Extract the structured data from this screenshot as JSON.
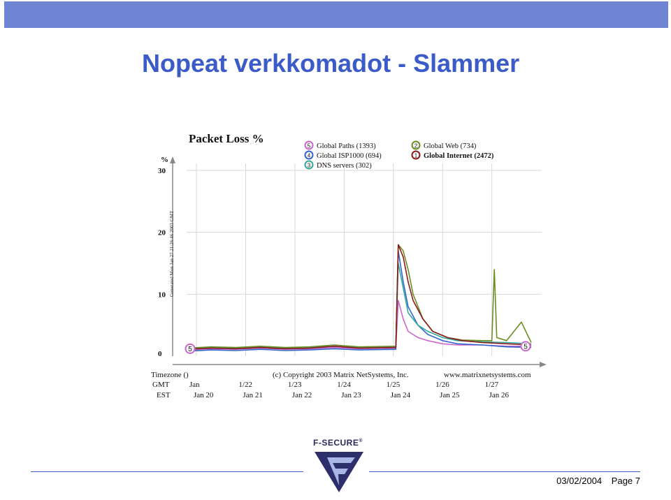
{
  "slide": {
    "title": "Nopeat verkkomadot - Slammer",
    "date": "03/02/2004",
    "page": "Page 7",
    "logo_text": "F-SECURE",
    "logo_mark": "®",
    "colors": {
      "topbar": "#6f85d4",
      "title": "#3a5bc8"
    }
  },
  "chart_data": {
    "type": "line",
    "title": "Packet Loss %",
    "ylabel": "%",
    "ylim": [
      0,
      30
    ],
    "yticks": [
      "0",
      "10",
      "20",
      "30"
    ],
    "grid": true,
    "side_note": "Generated Mon Jan 27 21:26:46 2003 GMT",
    "timezone_label": "Timezone ()",
    "copyright": "(c) Copyright 2003 Matrix NetSystems, Inc.",
    "website": "www.matrixnetsystems.com",
    "gmt_label": "GMT",
    "est_label": "EST",
    "gmt_ticks": [
      "Jan",
      "1/22",
      "1/23",
      "1/24",
      "1/25",
      "1/26",
      "1/27"
    ],
    "est_ticks": [
      "Jan 20",
      "Jan 21",
      "Jan 22",
      "Jan 23",
      "Jan 24",
      "Jan 25",
      "Jan 26"
    ],
    "x_range_days": [
      0,
      7
    ],
    "legend": [
      {
        "num": "5",
        "name": "Global Paths (1393)",
        "color": "#cc66cc"
      },
      {
        "num": "4",
        "name": "Global ISP1000 (694)",
        "color": "#3366cc"
      },
      {
        "num": "3",
        "name": "DNS servers (302)",
        "color": "#33aa99"
      },
      {
        "num": "2",
        "name": "Global Web (734)",
        "color": "#6b8e23"
      },
      {
        "num": "1",
        "name": "Global Internet (2472)",
        "color": "#8b1a1a"
      }
    ],
    "end_markers": [
      "5",
      "5"
    ],
    "series": [
      {
        "name": "Global Paths (1393)",
        "color": "#cc66cc",
        "x": [
          0,
          0.5,
          1,
          1.5,
          2,
          2.5,
          3,
          3.5,
          4.25,
          4.3,
          4.4,
          4.5,
          4.7,
          4.9,
          5.2,
          5.5,
          6,
          6.5,
          7
        ],
        "y": [
          1,
          1.2,
          1.1,
          1.3,
          1.1,
          1.2,
          1.4,
          1.2,
          1.3,
          9,
          6,
          4,
          3,
          2.5,
          2,
          1.8,
          1.8,
          1.6,
          1.6
        ]
      },
      {
        "name": "Global ISP1000 (694)",
        "color": "#3366cc",
        "x": [
          0,
          0.5,
          1,
          1.5,
          2,
          2.5,
          3,
          3.5,
          4.25,
          4.3,
          4.4,
          4.5,
          4.7,
          4.9,
          5.2,
          5.5,
          6,
          6.5,
          7
        ],
        "y": [
          0.8,
          1,
          0.9,
          1.1,
          0.9,
          1,
          1.2,
          1,
          1.1,
          17,
          12,
          8,
          5,
          3.5,
          2.5,
          2,
          1.8,
          1.5,
          1.4
        ]
      },
      {
        "name": "DNS servers (302)",
        "color": "#33aa99",
        "x": [
          0,
          0.5,
          1,
          1.5,
          2,
          2.5,
          3,
          3.5,
          4.25,
          4.3,
          4.4,
          4.5,
          4.7,
          4.9,
          5.2,
          5.5,
          6,
          6.5,
          7
        ],
        "y": [
          1.2,
          1.4,
          1.3,
          1.5,
          1.3,
          1.4,
          1.6,
          1.4,
          1.5,
          15,
          11,
          7,
          5,
          4,
          3,
          2.5,
          2.3,
          2.2,
          2
        ]
      },
      {
        "name": "Global Web (734)",
        "color": "#6b8e23",
        "x": [
          0,
          0.5,
          1,
          1.5,
          2,
          2.5,
          3,
          3.5,
          4.25,
          4.3,
          4.4,
          4.5,
          4.6,
          4.8,
          5,
          5.3,
          5.6,
          6,
          6.2,
          6.25,
          6.3,
          6.5,
          6.8,
          7
        ],
        "y": [
          1.3,
          1.5,
          1.4,
          1.6,
          1.4,
          1.5,
          1.8,
          1.5,
          1.6,
          18,
          17,
          14,
          10,
          6,
          4,
          3,
          2.6,
          2.5,
          2.5,
          14,
          3,
          2.5,
          5.5,
          2.2
        ]
      },
      {
        "name": "Global Internet (2472)",
        "color": "#8b1a1a",
        "x": [
          0,
          0.5,
          1,
          1.5,
          2,
          2.5,
          3,
          3.5,
          4.25,
          4.3,
          4.4,
          4.5,
          4.6,
          4.8,
          5,
          5.3,
          5.6,
          6,
          6.5,
          7
        ],
        "y": [
          1.1,
          1.3,
          1.2,
          1.4,
          1.2,
          1.3,
          1.6,
          1.3,
          1.4,
          18,
          16,
          12,
          9,
          6,
          4,
          3,
          2.5,
          2.2,
          2,
          1.8
        ]
      }
    ]
  }
}
